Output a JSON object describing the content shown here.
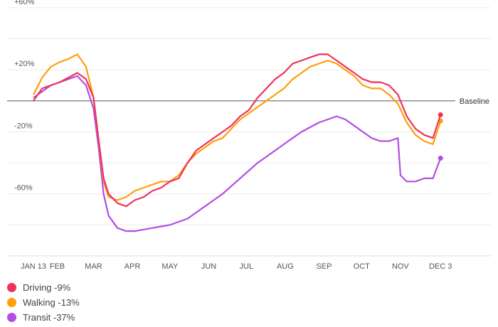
{
  "chart_data": {
    "type": "line",
    "baseline_label": "Baseline",
    "y_ticks": [
      {
        "value": 60,
        "label": "+60%"
      },
      {
        "value": 20,
        "label": "+20%"
      },
      {
        "value": -20,
        "label": "-20%"
      },
      {
        "value": -60,
        "label": "-60%"
      }
    ],
    "ylim": [
      -100,
      65
    ],
    "x_ticks": [
      {
        "day": 0,
        "label": "JAN 13"
      },
      {
        "day": 19,
        "label": "FEB"
      },
      {
        "day": 48,
        "label": "MAR"
      },
      {
        "day": 79,
        "label": "APR"
      },
      {
        "day": 109,
        "label": "MAY"
      },
      {
        "day": 140,
        "label": "JUN"
      },
      {
        "day": 170,
        "label": "JUL"
      },
      {
        "day": 201,
        "label": "AUG"
      },
      {
        "day": 232,
        "label": "SEP"
      },
      {
        "day": 262,
        "label": "OCT"
      },
      {
        "day": 293,
        "label": "NOV"
      },
      {
        "day": 325,
        "label": "DEC 3"
      }
    ],
    "xlim": [
      0,
      330
    ],
    "grid": true,
    "legend_placement": "bottom-left",
    "series": [
      {
        "name": "Driving",
        "legend_label": "Driving -9%",
        "color": "#f0325a",
        "end_value": -9,
        "points": [
          [
            0,
            0
          ],
          [
            7,
            8
          ],
          [
            14,
            10
          ],
          [
            21,
            12
          ],
          [
            28,
            15
          ],
          [
            35,
            18
          ],
          [
            42,
            14
          ],
          [
            48,
            2
          ],
          [
            52,
            -25
          ],
          [
            56,
            -50
          ],
          [
            60,
            -60
          ],
          [
            67,
            -66
          ],
          [
            74,
            -68
          ],
          [
            81,
            -64
          ],
          [
            88,
            -62
          ],
          [
            95,
            -58
          ],
          [
            102,
            -56
          ],
          [
            109,
            -52
          ],
          [
            116,
            -50
          ],
          [
            123,
            -40
          ],
          [
            130,
            -32
          ],
          [
            137,
            -28
          ],
          [
            144,
            -24
          ],
          [
            151,
            -20
          ],
          [
            158,
            -16
          ],
          [
            165,
            -10
          ],
          [
            172,
            -6
          ],
          [
            179,
            2
          ],
          [
            186,
            8
          ],
          [
            193,
            14
          ],
          [
            200,
            18
          ],
          [
            207,
            24
          ],
          [
            214,
            26
          ],
          [
            221,
            28
          ],
          [
            228,
            30
          ],
          [
            235,
            30
          ],
          [
            242,
            26
          ],
          [
            249,
            22
          ],
          [
            256,
            18
          ],
          [
            263,
            14
          ],
          [
            270,
            12
          ],
          [
            277,
            12
          ],
          [
            284,
            10
          ],
          [
            291,
            4
          ],
          [
            298,
            -10
          ],
          [
            305,
            -18
          ],
          [
            312,
            -22
          ],
          [
            319,
            -24
          ],
          [
            325,
            -9
          ]
        ]
      },
      {
        "name": "Walking",
        "legend_label": "Walking -13%",
        "color": "#ff9e0a",
        "end_value": -13,
        "points": [
          [
            0,
            4
          ],
          [
            7,
            15
          ],
          [
            14,
            22
          ],
          [
            21,
            25
          ],
          [
            28,
            27
          ],
          [
            35,
            30
          ],
          [
            42,
            22
          ],
          [
            48,
            2
          ],
          [
            52,
            -25
          ],
          [
            56,
            -52
          ],
          [
            60,
            -62
          ],
          [
            67,
            -64
          ],
          [
            74,
            -62
          ],
          [
            81,
            -58
          ],
          [
            88,
            -56
          ],
          [
            95,
            -54
          ],
          [
            102,
            -52
          ],
          [
            109,
            -52
          ],
          [
            116,
            -48
          ],
          [
            123,
            -40
          ],
          [
            130,
            -34
          ],
          [
            137,
            -30
          ],
          [
            144,
            -26
          ],
          [
            151,
            -24
          ],
          [
            158,
            -18
          ],
          [
            165,
            -12
          ],
          [
            172,
            -8
          ],
          [
            179,
            -4
          ],
          [
            186,
            0
          ],
          [
            193,
            4
          ],
          [
            200,
            8
          ],
          [
            207,
            14
          ],
          [
            214,
            18
          ],
          [
            221,
            22
          ],
          [
            228,
            24
          ],
          [
            235,
            26
          ],
          [
            242,
            24
          ],
          [
            249,
            20
          ],
          [
            256,
            16
          ],
          [
            263,
            10
          ],
          [
            270,
            8
          ],
          [
            277,
            8
          ],
          [
            284,
            4
          ],
          [
            291,
            -2
          ],
          [
            298,
            -14
          ],
          [
            305,
            -22
          ],
          [
            312,
            -26
          ],
          [
            319,
            -28
          ],
          [
            325,
            -13
          ]
        ]
      },
      {
        "name": "Transit",
        "legend_label": "Transit -37%",
        "color": "#b04fe0",
        "end_value": -37,
        "points": [
          [
            0,
            2
          ],
          [
            7,
            6
          ],
          [
            14,
            10
          ],
          [
            21,
            12
          ],
          [
            28,
            14
          ],
          [
            35,
            16
          ],
          [
            42,
            10
          ],
          [
            48,
            -5
          ],
          [
            52,
            -30
          ],
          [
            56,
            -60
          ],
          [
            60,
            -74
          ],
          [
            67,
            -82
          ],
          [
            74,
            -84
          ],
          [
            81,
            -84
          ],
          [
            88,
            -83
          ],
          [
            95,
            -82
          ],
          [
            102,
            -81
          ],
          [
            109,
            -80
          ],
          [
            116,
            -78
          ],
          [
            123,
            -76
          ],
          [
            130,
            -72
          ],
          [
            137,
            -68
          ],
          [
            144,
            -64
          ],
          [
            151,
            -60
          ],
          [
            158,
            -55
          ],
          [
            165,
            -50
          ],
          [
            172,
            -45
          ],
          [
            179,
            -40
          ],
          [
            186,
            -36
          ],
          [
            193,
            -32
          ],
          [
            200,
            -28
          ],
          [
            207,
            -24
          ],
          [
            214,
            -20
          ],
          [
            221,
            -17
          ],
          [
            228,
            -14
          ],
          [
            235,
            -12
          ],
          [
            242,
            -10
          ],
          [
            249,
            -12
          ],
          [
            256,
            -16
          ],
          [
            263,
            -20
          ],
          [
            270,
            -24
          ],
          [
            277,
            -26
          ],
          [
            284,
            -26
          ],
          [
            291,
            -24
          ],
          [
            293,
            -48
          ],
          [
            298,
            -52
          ],
          [
            305,
            -52
          ],
          [
            312,
            -50
          ],
          [
            319,
            -50
          ],
          [
            325,
            -37
          ]
        ]
      }
    ]
  }
}
